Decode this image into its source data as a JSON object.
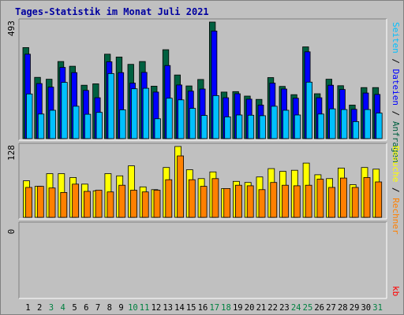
{
  "title": "Tages-Statistik im Monat Juli 2021",
  "colors": {
    "title": "#0000a0",
    "anfragen": "#006040",
    "dateien": "#0000ff",
    "seiten": "#00c0ff",
    "besuche": "#ffff00",
    "rechner": "#ff8000",
    "kb": "#ff0000",
    "weekend_day": "#008040",
    "weekday_day": "#000000",
    "panel": "#c0c0c0"
  },
  "chart_data": [
    {
      "type": "bar",
      "panel": "top",
      "ymax_label": "493",
      "ylim": [
        0,
        493
      ],
      "categories": [
        "1",
        "2",
        "3",
        "4",
        "5",
        "6",
        "7",
        "8",
        "9",
        "10",
        "11",
        "12",
        "13",
        "14",
        "15",
        "16",
        "17",
        "18",
        "19",
        "20",
        "21",
        "22",
        "23",
        "24",
        "25",
        "26",
        "27",
        "28",
        "29",
        "30",
        "31"
      ],
      "weekend_days": [
        3,
        4,
        10,
        11,
        17,
        18,
        24,
        25,
        31
      ],
      "series": [
        {
          "name": "Anfragen",
          "color_key": "anfragen",
          "values": [
            385,
            259,
            251,
            326,
            306,
            226,
            232,
            357,
            345,
            314,
            326,
            222,
            376,
            269,
            223,
            250,
            493,
            197,
            199,
            180,
            166,
            258,
            221,
            186,
            388,
            190,
            251,
            224,
            142,
            216,
            216
          ]
        },
        {
          "name": "Dateien",
          "color_key": "dateien",
          "values": [
            357,
            233,
            218,
            301,
            279,
            204,
            173,
            325,
            279,
            235,
            280,
            197,
            309,
            227,
            201,
            210,
            455,
            173,
            190,
            167,
            142,
            235,
            210,
            171,
            367,
            173,
            226,
            208,
            124,
            193,
            187
          ]
        },
        {
          "name": "Seiten",
          "color_key": "seiten",
          "values": [
            189,
            104,
            120,
            238,
            137,
            103,
            111,
            275,
            122,
            211,
            213,
            84,
            171,
            164,
            128,
            98,
            182,
            92,
            100,
            99,
            97,
            137,
            120,
            100,
            239,
            104,
            126,
            123,
            72,
            123,
            108
          ]
        }
      ],
      "right_label": [
        "Anfragen",
        "Dateien",
        "Seiten"
      ],
      "right_label_separator": " / "
    },
    {
      "type": "bar",
      "panel": "middle",
      "ymax_label": "128",
      "ylim": [
        0,
        128
      ],
      "categories": [
        "1",
        "2",
        "3",
        "4",
        "5",
        "6",
        "7",
        "8",
        "9",
        "10",
        "11",
        "12",
        "13",
        "14",
        "15",
        "16",
        "17",
        "18",
        "19",
        "20",
        "21",
        "22",
        "23",
        "24",
        "25",
        "26",
        "27",
        "28",
        "29",
        "30",
        "31"
      ],
      "series": [
        {
          "name": "Besuche",
          "color_key": "besuche",
          "values": [
            66,
            56,
            79,
            79,
            72,
            60,
            48,
            79,
            75,
            93,
            55,
            50,
            90,
            128,
            86,
            70,
            82,
            52,
            65,
            63,
            73,
            88,
            83,
            85,
            98,
            77,
            70,
            89,
            59,
            90,
            87
          ]
        },
        {
          "name": "Rechner",
          "color_key": "rechner",
          "values": [
            54,
            56,
            53,
            45,
            60,
            47,
            49,
            46,
            58,
            49,
            46,
            49,
            68,
            111,
            68,
            56,
            70,
            52,
            58,
            57,
            50,
            63,
            58,
            57,
            58,
            69,
            54,
            71,
            54,
            72,
            64
          ]
        }
      ],
      "right_label": [
        "Rechner",
        "Besuche"
      ],
      "right_label_separator": " / "
    },
    {
      "type": "bar",
      "panel": "bottom",
      "ymax_label": "0",
      "ylim": [
        0,
        1
      ],
      "categories": [
        "1",
        "2",
        "3",
        "4",
        "5",
        "6",
        "7",
        "8",
        "9",
        "10",
        "11",
        "12",
        "13",
        "14",
        "15",
        "16",
        "17",
        "18",
        "19",
        "20",
        "21",
        "22",
        "23",
        "24",
        "25",
        "26",
        "27",
        "28",
        "29",
        "30",
        "31"
      ],
      "series": [
        {
          "name": "kb",
          "color_key": "kb",
          "values": [
            0,
            0,
            0,
            0,
            0,
            0,
            0,
            0,
            0,
            0,
            0,
            0,
            0,
            0,
            0,
            0,
            0,
            0,
            0,
            0,
            0,
            0,
            0,
            0,
            0,
            0,
            0,
            0,
            0,
            0,
            0
          ]
        }
      ],
      "right_label": [
        "kb"
      ]
    }
  ]
}
